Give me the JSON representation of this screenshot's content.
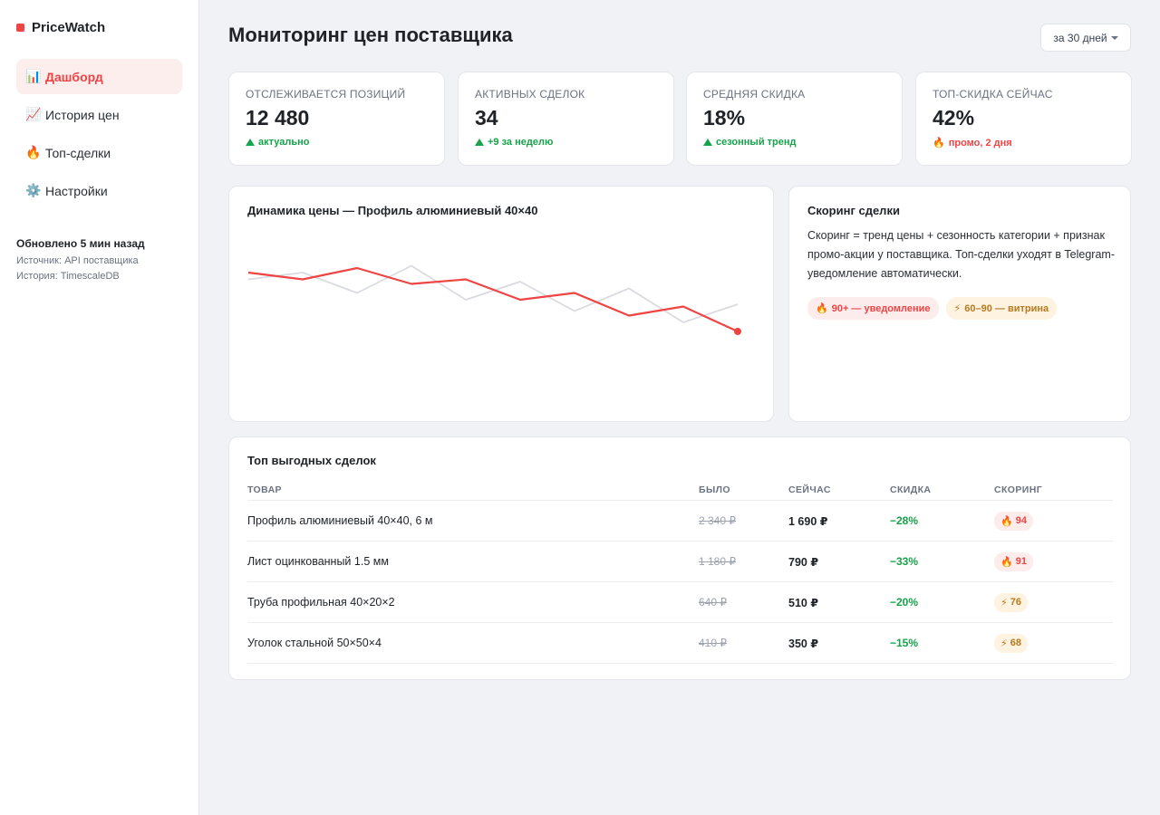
{
  "app": {
    "name": "PriceWatch",
    "accent": "#ef4444"
  },
  "sidebar": {
    "items": [
      {
        "icon": "📊",
        "icon_name": "bar-chart-icon",
        "label": "Дашборд",
        "active": true
      },
      {
        "icon": "📈",
        "icon_name": "trend-chart-icon",
        "label": "История цен",
        "active": false
      },
      {
        "icon": "🔥",
        "icon_name": "fire-icon",
        "label": "Топ-сделки",
        "active": false
      },
      {
        "icon": "⚙️",
        "icon_name": "gear-icon",
        "label": "Настройки",
        "active": false
      }
    ],
    "updated": "Обновлено 5 мин назад",
    "source": "Источник: API поставщика",
    "history": "История: TimescaleDB"
  },
  "header": {
    "title": "Мониторинг цен поставщика",
    "period": "за 30 дней"
  },
  "kpis": [
    {
      "label": "ОТСЛЕЖИВАЕТСЯ ПОЗИЦИЙ",
      "value": "12 480",
      "delta": "актуально",
      "tone": "up"
    },
    {
      "label": "АКТИВНЫХ СДЕЛОК",
      "value": "34",
      "delta": "+9 за неделю",
      "tone": "up"
    },
    {
      "label": "СРЕДНЯЯ СКИДКА",
      "value": "18%",
      "delta": "сезонный тренд",
      "tone": "up"
    },
    {
      "label": "ТОП-СКИДКА СЕЙЧАС",
      "value": "42%",
      "delta": "промо, 2 дня",
      "tone": "hot",
      "icon": "🔥"
    }
  ],
  "chart": {
    "title": "Динамика цены — Профиль алюминиевый 40×40",
    "colors": {
      "price": "#ef4444",
      "reference": "#d9dbe0"
    }
  },
  "chart_data": {
    "type": "line",
    "title": "Динамика цены — Профиль алюминиевый 40×40",
    "x": [
      0,
      1,
      2,
      3,
      4,
      5,
      6,
      7,
      8,
      9
    ],
    "series": [
      {
        "values": [
          100,
          97,
          102,
          95,
          97,
          88,
          91,
          81,
          85,
          74
        ]
      },
      {
        "values": [
          97,
          100,
          91,
          103,
          88,
          96,
          83,
          93,
          78,
          86
        ]
      }
    ],
    "ylim": [
      40,
      120
    ],
    "grid": false,
    "legend": "none"
  },
  "scoring": {
    "title": "Скоринг сделки",
    "text": "Скоринг = тренд цены + сезонность категории + признак промо-акции у поставщика. Топ-сделки уходят в Telegram-уведомление автоматически.",
    "pills": [
      {
        "icon": "🔥",
        "label": "90+ — уведомление",
        "tone": "red"
      },
      {
        "icon": "⚡",
        "label": "60–90 — витрина",
        "tone": "amber"
      }
    ]
  },
  "deals": {
    "title": "Топ выгодных сделок",
    "columns": [
      "ТОВАР",
      "БЫЛО",
      "СЕЙЧАС",
      "СКИДКА",
      "СКОРИНГ"
    ],
    "rows": [
      {
        "name": "Профиль алюминиевый 40×40, 6 м",
        "was": "2 340 ₽",
        "now": "1 690 ₽",
        "discount": "−28%",
        "score_icon": "🔥",
        "score": "94",
        "tone": "red"
      },
      {
        "name": "Лист оцинкованный 1.5 мм",
        "was": "1 180 ₽",
        "now": "790 ₽",
        "discount": "−33%",
        "score_icon": "🔥",
        "score": "91",
        "tone": "red"
      },
      {
        "name": "Труба профильная 40×20×2",
        "was": "640 ₽",
        "now": "510 ₽",
        "discount": "−20%",
        "score_icon": "⚡",
        "score": "76",
        "tone": "amber"
      },
      {
        "name": "Уголок стальной 50×50×4",
        "was": "410 ₽",
        "now": "350 ₽",
        "discount": "−15%",
        "score_icon": "⚡",
        "score": "68",
        "tone": "amber"
      }
    ]
  }
}
